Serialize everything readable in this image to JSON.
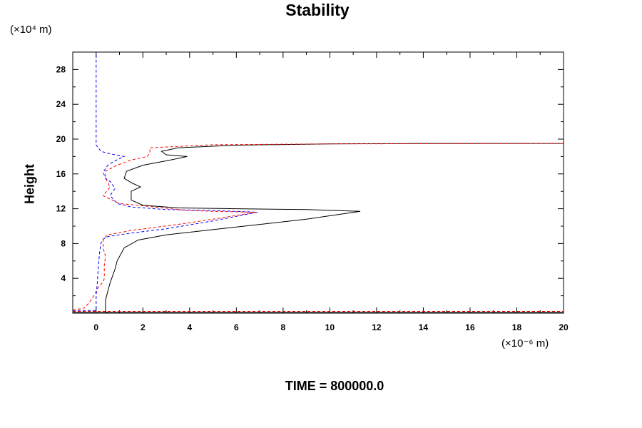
{
  "chart_data": {
    "type": "line",
    "title": "Stability",
    "xlabel": "",
    "ylabel": "Height",
    "x_unit": "(×10⁻⁶ m)",
    "y_unit": "(×10⁴ m)",
    "xlim": [
      -1,
      20
    ],
    "ylim": [
      0,
      30
    ],
    "x_ticks": [
      0,
      2,
      4,
      6,
      8,
      10,
      12,
      14,
      16,
      18,
      20
    ],
    "y_ticks": [
      4,
      8,
      12,
      16,
      20,
      24,
      28
    ],
    "grid": false,
    "legend": "none",
    "series": [
      {
        "color": "#000000",
        "style": "solid",
        "points": [
          [
            0.5,
            0
          ],
          [
            0.4,
            0.2
          ],
          [
            0.4,
            0.4
          ],
          [
            0.4,
            1.5
          ],
          [
            0.5,
            2.5
          ],
          [
            0.6,
            3.5
          ],
          [
            0.8,
            5.0
          ],
          [
            0.9,
            6.0
          ],
          [
            1.2,
            7.5
          ],
          [
            1.8,
            8.4
          ],
          [
            3.0,
            9.0
          ],
          [
            5.0,
            9.6
          ],
          [
            7.0,
            10.2
          ],
          [
            9.0,
            10.8
          ],
          [
            11.3,
            11.7
          ],
          [
            9.0,
            11.9
          ],
          [
            6.0,
            12.0
          ],
          [
            3.5,
            12.1
          ],
          [
            2.0,
            12.4
          ],
          [
            1.5,
            13.0
          ],
          [
            1.5,
            14.0
          ],
          [
            1.9,
            14.5
          ],
          [
            1.5,
            15.0
          ],
          [
            1.2,
            15.5
          ],
          [
            1.3,
            16.3
          ],
          [
            2.0,
            17.0
          ],
          [
            3.0,
            17.5
          ],
          [
            3.9,
            18.0
          ],
          [
            3.0,
            18.2
          ],
          [
            2.8,
            18.6
          ],
          [
            3.5,
            19.0
          ],
          [
            6.0,
            19.3
          ],
          [
            10.0,
            19.45
          ],
          [
            14.0,
            19.5
          ],
          [
            20.0,
            19.5
          ]
        ]
      },
      {
        "color": "#0000ff",
        "style": "dashed",
        "points": [
          [
            -1,
            0.3
          ],
          [
            0,
            0.3
          ],
          [
            0,
            0.5
          ],
          [
            0,
            2.0
          ],
          [
            0.05,
            3.5
          ],
          [
            0.1,
            5.5
          ],
          [
            0.15,
            7.0
          ],
          [
            0.2,
            8.0
          ],
          [
            0.3,
            8.5
          ],
          [
            0.5,
            8.8
          ],
          [
            1.5,
            9.2
          ],
          [
            3.0,
            9.7
          ],
          [
            5.0,
            10.6
          ],
          [
            6.9,
            11.6
          ],
          [
            5.0,
            11.8
          ],
          [
            3.0,
            11.9
          ],
          [
            1.5,
            12.2
          ],
          [
            0.9,
            12.6
          ],
          [
            0.6,
            13.5
          ],
          [
            0.8,
            14.3
          ],
          [
            0.65,
            15.0
          ],
          [
            0.4,
            15.5
          ],
          [
            0.3,
            16.2
          ],
          [
            0.5,
            17.0
          ],
          [
            0.8,
            17.5
          ],
          [
            1.2,
            18.0
          ],
          [
            0.6,
            18.3
          ],
          [
            0.2,
            18.6
          ],
          [
            0.1,
            19.0
          ],
          [
            0,
            19.3
          ],
          [
            0,
            20
          ],
          [
            0,
            30
          ]
        ]
      },
      {
        "color": "#ff0000",
        "style": "dashed",
        "points": [
          [
            -1,
            0.35
          ],
          [
            -0.5,
            0.6
          ],
          [
            -0.3,
            1.2
          ],
          [
            -0.1,
            2.0
          ],
          [
            0.1,
            3.0
          ],
          [
            0.3,
            3.6
          ],
          [
            0.35,
            4.0
          ],
          [
            0.35,
            5.5
          ],
          [
            0.4,
            6.5
          ],
          [
            0.3,
            7.5
          ],
          [
            0.3,
            8.5
          ],
          [
            0.5,
            9.0
          ],
          [
            1.5,
            9.5
          ],
          [
            3.5,
            10.2
          ],
          [
            5.5,
            11.0
          ],
          [
            6.8,
            11.6
          ],
          [
            5.0,
            11.7
          ],
          [
            3.9,
            11.8
          ],
          [
            2.5,
            12.2
          ],
          [
            1.0,
            12.6
          ],
          [
            0.3,
            13.5
          ],
          [
            0.6,
            14.5
          ],
          [
            0.4,
            15.5
          ],
          [
            0.4,
            16.3
          ],
          [
            0.9,
            17.0
          ],
          [
            1.5,
            17.6
          ],
          [
            2.2,
            18.0
          ],
          [
            2.3,
            18.5
          ],
          [
            2.3,
            19.0
          ],
          [
            5.0,
            19.35
          ],
          [
            10.0,
            19.45
          ],
          [
            20.0,
            19.5
          ]
        ]
      }
    ],
    "baseline_traces": [
      {
        "color": "#000000",
        "style": "solid",
        "y": 0.1
      },
      {
        "color": "#ff0000",
        "style": "dashed",
        "y": 0.2
      }
    ]
  },
  "footer": "TIME = 800000.0"
}
